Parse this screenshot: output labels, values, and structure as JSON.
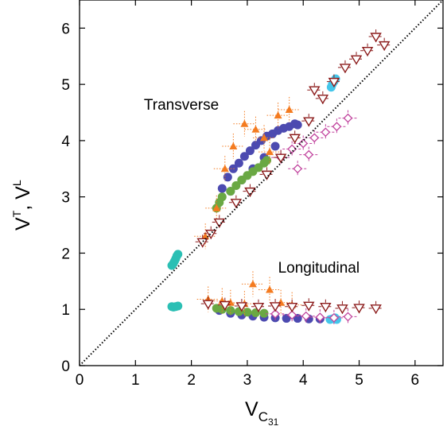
{
  "chart_data": {
    "type": "scatter",
    "title": "",
    "xlabel": "V",
    "xlabel_sub": "C",
    "xlabel_subsub": "31",
    "ylabel_parts": [
      "V",
      "T",
      ", V",
      "L"
    ],
    "xlim": [
      0,
      6.5
    ],
    "ylim": [
      0,
      6.5
    ],
    "xticks": [
      "0",
      "1",
      "2",
      "3",
      "4",
      "5",
      "6"
    ],
    "yticks": [
      "0",
      "1",
      "2",
      "3",
      "4",
      "5",
      "6"
    ],
    "grid": false,
    "legend": "none",
    "reference_line": {
      "style": "dotted",
      "color": "#000000",
      "from": [
        0,
        0
      ],
      "to": [
        6.5,
        6.5
      ]
    },
    "annotations": [
      {
        "text": "Transverse",
        "x": 1.15,
        "y": 4.55
      },
      {
        "text": "Longitudinal",
        "x": 3.55,
        "y": 1.65
      }
    ],
    "series": [
      {
        "marker": "cyan-filled-circle",
        "color": "#2bbfb4",
        "points": [
          [
            1.65,
            1.78
          ],
          [
            1.68,
            1.82
          ],
          [
            1.7,
            1.86
          ],
          [
            1.72,
            1.9
          ],
          [
            1.74,
            1.95
          ],
          [
            1.76,
            1.98
          ],
          [
            1.65,
            1.05
          ],
          [
            1.68,
            1.04
          ],
          [
            1.72,
            1.05
          ],
          [
            1.76,
            1.06
          ]
        ]
      },
      {
        "marker": "lightblue-filled-circle",
        "color": "#44c6ea",
        "points": [
          [
            4.5,
            4.95
          ],
          [
            4.52,
            5.0
          ],
          [
            4.55,
            5.05
          ],
          [
            4.58,
            5.1
          ],
          [
            4.48,
            0.82
          ],
          [
            4.52,
            0.83
          ],
          [
            4.57,
            0.85
          ],
          [
            4.6,
            0.82
          ]
        ]
      },
      {
        "marker": "blue-filled-circle",
        "color": "#4c4ab0",
        "points": [
          [
            2.55,
            3.15
          ],
          [
            2.65,
            3.35
          ],
          [
            2.75,
            3.5
          ],
          [
            2.85,
            3.6
          ],
          [
            2.95,
            3.72
          ],
          [
            3.05,
            3.82
          ],
          [
            3.15,
            3.92
          ],
          [
            3.25,
            4.0
          ],
          [
            3.35,
            4.08
          ],
          [
            3.45,
            4.12
          ],
          [
            3.55,
            4.18
          ],
          [
            3.65,
            4.22
          ],
          [
            3.75,
            4.25
          ],
          [
            3.85,
            4.3
          ],
          [
            3.9,
            4.28
          ],
          [
            2.7,
            3.1
          ],
          [
            2.9,
            3.3
          ],
          [
            3.1,
            3.5
          ],
          [
            3.3,
            3.7
          ],
          [
            3.5,
            3.9
          ],
          [
            2.5,
            0.98
          ],
          [
            2.7,
            0.93
          ],
          [
            2.9,
            0.9
          ],
          [
            3.1,
            0.88
          ],
          [
            3.3,
            0.86
          ],
          [
            3.5,
            0.85
          ],
          [
            3.7,
            0.84
          ],
          [
            3.9,
            0.84
          ],
          [
            4.1,
            0.83
          ],
          [
            4.3,
            0.83
          ]
        ]
      },
      {
        "marker": "green-filled-circle",
        "color": "#6aa843",
        "points": [
          [
            2.45,
            2.8
          ],
          [
            2.5,
            2.9
          ],
          [
            2.55,
            3.0
          ],
          [
            2.7,
            3.1
          ],
          [
            2.8,
            3.2
          ],
          [
            2.9,
            3.3
          ],
          [
            3.0,
            3.38
          ],
          [
            3.1,
            3.45
          ],
          [
            3.2,
            3.52
          ],
          [
            3.3,
            3.6
          ],
          [
            3.35,
            3.65
          ],
          [
            2.45,
            1.02
          ],
          [
            2.55,
            1.0
          ],
          [
            2.7,
            0.98
          ],
          [
            2.85,
            0.96
          ],
          [
            3.0,
            0.95
          ],
          [
            3.15,
            0.94
          ],
          [
            3.3,
            0.93
          ]
        ]
      },
      {
        "marker": "orange-filled-triangle",
        "color": "#f47b20",
        "points": [
          [
            2.25,
            2.3
          ],
          [
            2.45,
            2.8
          ],
          [
            2.6,
            3.5
          ],
          [
            2.75,
            3.9
          ],
          [
            2.95,
            4.3
          ],
          [
            3.15,
            4.2
          ],
          [
            3.3,
            4.05
          ],
          [
            3.55,
            4.45
          ],
          [
            3.75,
            4.55
          ],
          [
            3.4,
            3.8
          ],
          [
            2.3,
            1.18
          ],
          [
            2.55,
            1.15
          ],
          [
            2.7,
            1.12
          ],
          [
            2.95,
            1.1
          ],
          [
            3.1,
            1.45
          ],
          [
            3.4,
            1.35
          ],
          [
            3.6,
            1.12
          ],
          [
            3.8,
            1.08
          ]
        ]
      },
      {
        "marker": "magenta-open-diamond",
        "color": "#c1449e",
        "points": [
          [
            3.6,
            3.7
          ],
          [
            3.8,
            3.85
          ],
          [
            4.0,
            3.95
          ],
          [
            4.2,
            4.05
          ],
          [
            4.4,
            4.15
          ],
          [
            4.6,
            4.25
          ],
          [
            4.8,
            4.4
          ],
          [
            3.9,
            3.5
          ],
          [
            4.1,
            3.75
          ],
          [
            3.5,
            0.92
          ],
          [
            3.8,
            0.9
          ],
          [
            4.05,
            0.88
          ],
          [
            4.3,
            0.86
          ],
          [
            4.55,
            0.85
          ],
          [
            4.8,
            0.87
          ]
        ]
      },
      {
        "marker": "darkred-open-triangle-down",
        "color": "#8b1a1a",
        "points": [
          [
            2.2,
            2.2
          ],
          [
            2.35,
            2.35
          ],
          [
            2.5,
            2.55
          ],
          [
            2.8,
            2.9
          ],
          [
            3.05,
            3.1
          ],
          [
            3.35,
            3.4
          ],
          [
            3.6,
            3.7
          ],
          [
            3.85,
            4.05
          ],
          [
            4.1,
            4.35
          ],
          [
            4.35,
            4.75
          ],
          [
            4.55,
            5.05
          ],
          [
            4.75,
            5.3
          ],
          [
            4.95,
            5.45
          ],
          [
            5.15,
            5.6
          ],
          [
            5.3,
            5.85
          ],
          [
            5.45,
            5.7
          ],
          [
            4.2,
            4.9
          ],
          [
            2.3,
            1.1
          ],
          [
            2.6,
            1.08
          ],
          [
            2.9,
            1.06
          ],
          [
            3.2,
            1.05
          ],
          [
            3.5,
            1.06
          ],
          [
            3.8,
            1.05
          ],
          [
            4.1,
            1.07
          ],
          [
            4.4,
            1.05
          ],
          [
            4.7,
            1.02
          ],
          [
            5.0,
            1.03
          ],
          [
            5.3,
            1.02
          ]
        ]
      }
    ]
  }
}
